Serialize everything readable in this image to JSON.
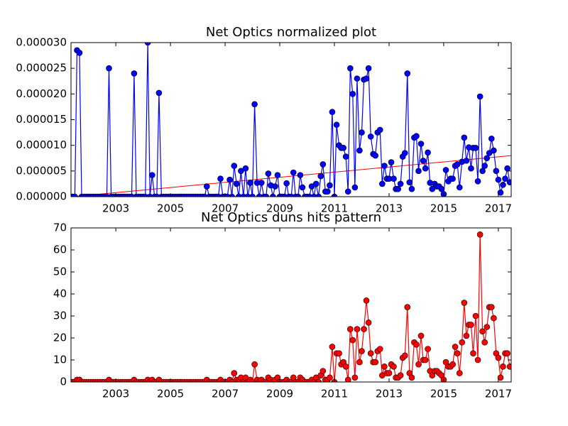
{
  "chart_data": [
    {
      "type": "line",
      "title": "Net Optics normalized plot",
      "color": "#0000ff",
      "x": [
        2001.42,
        2001.5,
        2001.58,
        2001.67,
        2001.75,
        2001.83,
        2001.92,
        2002,
        2002.08,
        2002.17,
        2002.25,
        2002.33,
        2002.42,
        2002.5,
        2002.58,
        2002.67,
        2002.75,
        2002.83,
        2002.92,
        2003,
        2003.08,
        2003.17,
        2003.25,
        2003.33,
        2003.42,
        2003.5,
        2003.58,
        2003.67,
        2003.75,
        2003.83,
        2003.92,
        2004,
        2004.08,
        2004.17,
        2004.25,
        2004.33,
        2004.42,
        2004.5,
        2004.58,
        2004.67,
        2004.75,
        2004.83,
        2004.92,
        2005,
        2005.08,
        2005.17,
        2005.25,
        2005.33,
        2005.42,
        2005.5,
        2005.58,
        2005.67,
        2005.75,
        2005.83,
        2005.92,
        2006,
        2006.08,
        2006.17,
        2006.25,
        2006.33,
        2006.42,
        2006.5,
        2006.58,
        2006.67,
        2006.75,
        2006.83,
        2006.92,
        2007,
        2007.08,
        2007.17,
        2007.25,
        2007.33,
        2007.42,
        2007.5,
        2007.58,
        2007.67,
        2007.75,
        2007.83,
        2007.92,
        2008,
        2008.08,
        2008.17,
        2008.25,
        2008.33,
        2008.42,
        2008.5,
        2008.58,
        2008.67,
        2008.75,
        2008.83,
        2008.92,
        2009,
        2009.08,
        2009.17,
        2009.25,
        2009.33,
        2009.42,
        2009.5,
        2009.58,
        2009.67,
        2009.75,
        2009.83,
        2009.92,
        2010,
        2010.08,
        2010.17,
        2010.25,
        2010.33,
        2010.42,
        2010.5,
        2010.58,
        2010.67,
        2010.75,
        2010.83,
        2010.92,
        2011,
        2011.08,
        2011.17,
        2011.25,
        2011.33,
        2011.42,
        2011.5,
        2011.58,
        2011.67,
        2011.75,
        2011.83,
        2011.92,
        2012,
        2012.08,
        2012.17,
        2012.25,
        2012.33,
        2012.42,
        2012.5,
        2012.58,
        2012.67,
        2012.75,
        2012.83,
        2012.92,
        2013,
        2013.08,
        2013.17,
        2013.25,
        2013.33,
        2013.42,
        2013.5,
        2013.58,
        2013.67,
        2013.75,
        2013.83,
        2013.92,
        2014,
        2014.08,
        2014.17,
        2014.25,
        2014.33,
        2014.42,
        2014.5,
        2014.58,
        2014.67,
        2014.75,
        2014.83,
        2014.92,
        2015,
        2015.08,
        2015.17,
        2015.25,
        2015.33,
        2015.42,
        2015.5,
        2015.58,
        2015.67,
        2015.75,
        2015.83,
        2015.92,
        2016,
        2016.08,
        2016.17,
        2016.25,
        2016.33,
        2016.42,
        2016.5,
        2016.58,
        2016.67,
        2016.75,
        2016.83,
        2016.92,
        2017,
        2017.08,
        2017.17,
        2017.25,
        2017.33,
        2017.42
      ],
      "values": [
        0,
        0,
        2.85e-05,
        2.8e-05,
        0,
        0,
        0,
        0,
        0,
        0,
        0,
        0,
        0,
        0,
        0,
        0,
        2.5e-05,
        0,
        0,
        0,
        0,
        0,
        0,
        0,
        0,
        0,
        0,
        2.4e-05,
        0,
        0,
        0,
        0,
        0,
        3e-05,
        0,
        4.2e-06,
        0,
        0,
        2.02e-05,
        0,
        0,
        0,
        0,
        0,
        0,
        0,
        0,
        0,
        0,
        0,
        0,
        0,
        0,
        0,
        0,
        0,
        0,
        0,
        0,
        2e-06,
        0,
        0,
        0,
        0,
        0,
        3.5e-06,
        0,
        0,
        0,
        3.3e-06,
        0,
        6e-06,
        2.5e-06,
        0,
        5e-06,
        0,
        5.5e-06,
        0,
        2.7e-06,
        0,
        1.8e-05,
        2.7e-06,
        0,
        2.7e-06,
        0,
        0,
        4.5e-06,
        2.2e-06,
        0,
        2e-06,
        4.2e-06,
        0,
        0,
        0,
        2.6e-06,
        0,
        0,
        4.7e-06,
        0,
        0,
        4.2e-06,
        1.8e-06,
        0,
        0,
        0,
        2e-06,
        0,
        2.5e-06,
        0,
        4e-06,
        6.3e-06,
        1e-06,
        1e-06,
        2.2e-06,
        1.65e-05,
        0,
        1.4e-05,
        1e-05,
        9.5e-06,
        9.5e-06,
        7.8e-06,
        1e-06,
        2.5e-05,
        2e-05,
        1.8e-06,
        2.3e-05,
        9e-06,
        1.25e-05,
        2.28e-05,
        2.3e-05,
        2.5e-05,
        1.17e-05,
        8.3e-06,
        8e-06,
        1.25e-05,
        1.3e-05,
        2.5e-06,
        6e-06,
        3.5e-06,
        3.5e-06,
        6.7e-06,
        3.5e-06,
        1.5e-06,
        1.5e-06,
        2.5e-06,
        7.8e-06,
        8.5e-06,
        2.4e-05,
        2.8e-06,
        1.5e-06,
        1.15e-05,
        1.18e-05,
        5e-06,
        1.03e-05,
        7e-06,
        5.5e-06,
        8.6e-06,
        2.7e-06,
        1.5e-06,
        2.5e-06,
        2e-06,
        2e-06,
        1.5e-06,
        5e-07,
        5.2e-06,
        3e-06,
        3.5e-06,
        3.5e-06,
        6e-06,
        6.3e-06,
        1.8e-06,
        6.8e-06,
        1.15e-05,
        7e-06,
        9.6e-06,
        5.5e-06,
        9.5e-06,
        9.5e-06,
        3e-06,
        1.95e-05,
        5e-06,
        6e-06,
        7.5e-06,
        8.5e-06,
        1.13e-05,
        9e-06,
        5e-06,
        3.3e-06,
        8e-07,
        2.3e-06,
        3.5e-06,
        5.5e-06,
        2.8e-06
      ],
      "trend": {
        "x": [
          2001.42,
          2017.47
        ],
        "values": [
          0,
          8e-06
        ],
        "color": "#ff0000"
      },
      "xlim": [
        2001.36,
        2017.47
      ],
      "xticks": [
        2003,
        2005,
        2007,
        2009,
        2011,
        2013,
        2015,
        2017
      ],
      "ylim": [
        0,
        3e-05
      ],
      "yticks": [
        {
          "value": 0,
          "label": "0.000000"
        },
        {
          "value": 5e-06,
          "label": "0.000005"
        },
        {
          "value": 1e-05,
          "label": "0.000010"
        },
        {
          "value": 1.5e-05,
          "label": "0.000015"
        },
        {
          "value": 2e-05,
          "label": "0.000020"
        },
        {
          "value": 2.5e-05,
          "label": "0.000025"
        },
        {
          "value": 3e-05,
          "label": "0.000030"
        }
      ]
    },
    {
      "type": "line",
      "title": "Net Optics duns hits pattern",
      "color": "#ff0000",
      "x": [
        2001.42,
        2001.5,
        2001.58,
        2001.67,
        2001.75,
        2001.83,
        2001.92,
        2002,
        2002.08,
        2002.17,
        2002.25,
        2002.33,
        2002.42,
        2002.5,
        2002.58,
        2002.67,
        2002.75,
        2002.83,
        2002.92,
        2003,
        2003.08,
        2003.17,
        2003.25,
        2003.33,
        2003.42,
        2003.5,
        2003.58,
        2003.67,
        2003.75,
        2003.83,
        2003.92,
        2004,
        2004.08,
        2004.17,
        2004.25,
        2004.33,
        2004.42,
        2004.5,
        2004.58,
        2004.67,
        2004.75,
        2004.83,
        2004.92,
        2005,
        2005.08,
        2005.17,
        2005.25,
        2005.33,
        2005.42,
        2005.5,
        2005.58,
        2005.67,
        2005.75,
        2005.83,
        2005.92,
        2006,
        2006.08,
        2006.17,
        2006.25,
        2006.33,
        2006.42,
        2006.5,
        2006.58,
        2006.67,
        2006.75,
        2006.83,
        2006.92,
        2007,
        2007.08,
        2007.17,
        2007.25,
        2007.33,
        2007.42,
        2007.5,
        2007.58,
        2007.67,
        2007.75,
        2007.83,
        2007.92,
        2008,
        2008.08,
        2008.17,
        2008.25,
        2008.33,
        2008.42,
        2008.5,
        2008.58,
        2008.67,
        2008.75,
        2008.83,
        2008.92,
        2009,
        2009.08,
        2009.17,
        2009.25,
        2009.33,
        2009.42,
        2009.5,
        2009.58,
        2009.67,
        2009.75,
        2009.83,
        2009.92,
        2010,
        2010.08,
        2010.17,
        2010.25,
        2010.33,
        2010.42,
        2010.5,
        2010.58,
        2010.67,
        2010.75,
        2010.83,
        2010.92,
        2011,
        2011.08,
        2011.17,
        2011.25,
        2011.33,
        2011.42,
        2011.5,
        2011.58,
        2011.67,
        2011.75,
        2011.83,
        2011.92,
        2012,
        2012.08,
        2012.17,
        2012.25,
        2012.33,
        2012.42,
        2012.5,
        2012.58,
        2012.67,
        2012.75,
        2012.83,
        2012.92,
        2013,
        2013.08,
        2013.17,
        2013.25,
        2013.33,
        2013.42,
        2013.5,
        2013.58,
        2013.67,
        2013.75,
        2013.83,
        2013.92,
        2014,
        2014.08,
        2014.17,
        2014.25,
        2014.33,
        2014.42,
        2014.5,
        2014.58,
        2014.67,
        2014.75,
        2014.83,
        2014.92,
        2015,
        2015.08,
        2015.17,
        2015.25,
        2015.33,
        2015.42,
        2015.5,
        2015.58,
        2015.67,
        2015.75,
        2015.83,
        2015.92,
        2016,
        2016.08,
        2016.17,
        2016.25,
        2016.33,
        2016.42,
        2016.5,
        2016.58,
        2016.67,
        2016.75,
        2016.83,
        2016.92,
        2017,
        2017.08,
        2017.17,
        2017.25,
        2017.33,
        2017.42
      ],
      "values": [
        0,
        0,
        1,
        1,
        0,
        0,
        0,
        0,
        0,
        0,
        0,
        0,
        0,
        0,
        0,
        0,
        1,
        0,
        0,
        0,
        0,
        0,
        0,
        0,
        0,
        0,
        0,
        1,
        0,
        0,
        0,
        0,
        0,
        1,
        0,
        1,
        0,
        0,
        1,
        0,
        0,
        0,
        0,
        0,
        0,
        0,
        0,
        0,
        0,
        0,
        0,
        0,
        0,
        0,
        0,
        0,
        0,
        0,
        0,
        1,
        0,
        0,
        0,
        0,
        0,
        1,
        0,
        0,
        0,
        1,
        0,
        4,
        1,
        0,
        2,
        0,
        2,
        0,
        1,
        0,
        8,
        1,
        0,
        1,
        0,
        0,
        2,
        1,
        0,
        1,
        2,
        0,
        0,
        0,
        1,
        0,
        0,
        2,
        0,
        0,
        2,
        1,
        0,
        0,
        0,
        1,
        0,
        2,
        0,
        3,
        5,
        1,
        1,
        2,
        16,
        0,
        13,
        13,
        8,
        9,
        7,
        1,
        24,
        19,
        2,
        24,
        9,
        14,
        24,
        37,
        27,
        13,
        9,
        9,
        14,
        15,
        3,
        7,
        4,
        4,
        8,
        7,
        2,
        2,
        3,
        11,
        12,
        34,
        4,
        2,
        18,
        17,
        8,
        21,
        10,
        10,
        15,
        5,
        3,
        5,
        5,
        4,
        3,
        1,
        9,
        7,
        7,
        8,
        16,
        13,
        4,
        18,
        36,
        21,
        26,
        26,
        13,
        30,
        10,
        67,
        23,
        18,
        25,
        34,
        34,
        29,
        13,
        11,
        2,
        7,
        13,
        13,
        7
      ],
      "xlim": [
        2001.36,
        2017.47
      ],
      "xticks": [
        2003,
        2005,
        2007,
        2009,
        2011,
        2013,
        2015,
        2017
      ],
      "ylim": [
        0,
        70
      ],
      "yticks": [
        0,
        10,
        20,
        30,
        40,
        50,
        60,
        70
      ]
    }
  ]
}
